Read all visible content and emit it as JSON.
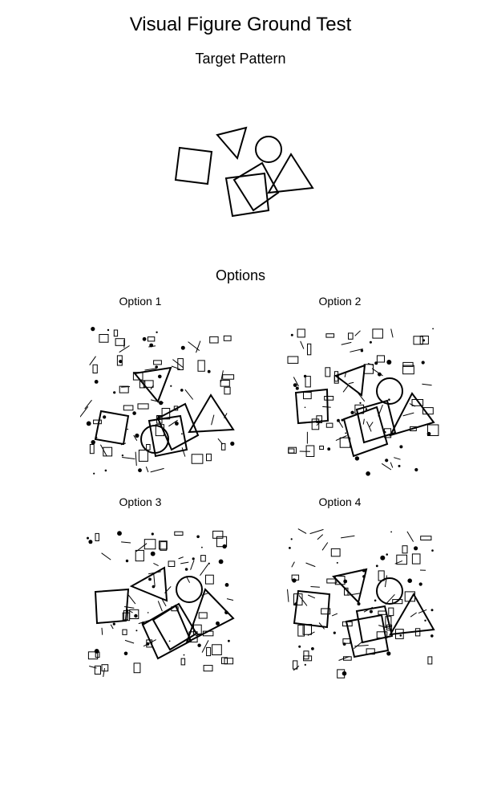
{
  "title": "Visual Figure Ground Test",
  "target": {
    "label": "Target Pattern",
    "shapes": [
      "square",
      "triangle",
      "circle",
      "triangle",
      "square",
      "square"
    ]
  },
  "options": {
    "heading": "Options",
    "items": [
      {
        "label": "Option 1"
      },
      {
        "label": "Option 2"
      },
      {
        "label": "Option 3"
      },
      {
        "label": "Option 4"
      }
    ]
  }
}
